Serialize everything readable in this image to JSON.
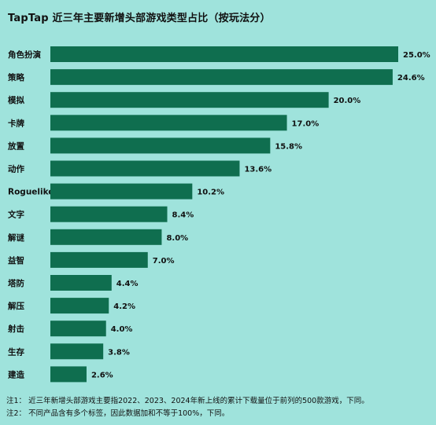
{
  "title": "TapTap 近三年主要新增头部游戏类型占比（按玩法分）",
  "notes": [
    "注1： 近三年新增头部游戏主要指2022、2023、2024年新上线的累计下载量位于前列的500款游戏，下同。",
    "注2： 不同产品含有多个标签，因此数据加和不等于100%，下同。"
  ],
  "colors": {
    "bar": "#0f6e4f",
    "background": "#9fe3dc"
  },
  "chart_data": {
    "type": "bar",
    "orientation": "horizontal",
    "title": "TapTap 近三年主要新增头部游戏类型占比（按玩法分）",
    "categories": [
      "角色扮演",
      "策略",
      "模拟",
      "卡牌",
      "放置",
      "动作",
      "Roguelike",
      "文字",
      "解谜",
      "益智",
      "塔防",
      "解压",
      "射击",
      "生存",
      "建造"
    ],
    "values": [
      25.0,
      24.6,
      20.0,
      17.0,
      15.8,
      13.6,
      10.2,
      8.4,
      8.0,
      7.0,
      4.4,
      4.2,
      4.0,
      3.8,
      2.6
    ],
    "value_labels": [
      "25.0%",
      "24.6%",
      "20.0%",
      "17.0%",
      "15.8%",
      "13.6%",
      "10.2%",
      "8.4%",
      "8.0%",
      "7.0%",
      "4.4%",
      "4.2%",
      "4.0%",
      "3.8%",
      "2.6%"
    ],
    "xlim": [
      0,
      25
    ],
    "grid": false,
    "legend": "none"
  }
}
